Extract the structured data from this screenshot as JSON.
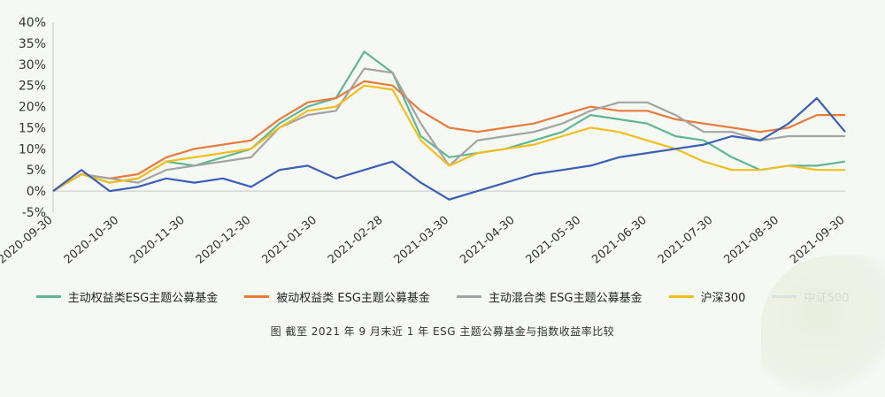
{
  "chart_data": {
    "type": "line",
    "title": "",
    "xlabel": "",
    "ylabel": "",
    "ylim": [
      -5,
      40
    ],
    "yticks": [
      "-5%",
      "0%",
      "5%",
      "10%",
      "15%",
      "20%",
      "25%",
      "30%",
      "35%",
      "40%"
    ],
    "x_tick_labels": [
      "2020-09-30",
      "2020-10-30",
      "2020-11-30",
      "2020-12-30",
      "2021-01-30",
      "2021-02-28",
      "2021-03-30",
      "2021-04-30",
      "2021-05-30",
      "2021-06-30",
      "2021-07-30",
      "2021-08-30",
      "2021-09-30"
    ],
    "grid": false,
    "legend_position": "bottom",
    "series": [
      {
        "name": "主动权益类ESG主题公募基金",
        "color": "#5cb894",
        "values": [
          0,
          4,
          2,
          3,
          7,
          6,
          8,
          10,
          16,
          20,
          22,
          33,
          28,
          13,
          8,
          9,
          10,
          12,
          14,
          18,
          17,
          16,
          13,
          12,
          8,
          5,
          6,
          6,
          7
        ]
      },
      {
        "name": "被动权益类 ESG主题公募基金",
        "color": "#e87a3c",
        "values": [
          0,
          4,
          3,
          4,
          8,
          10,
          11,
          12,
          17,
          21,
          22,
          26,
          25,
          19,
          15,
          14,
          15,
          16,
          18,
          20,
          19,
          19,
          17,
          16,
          15,
          14,
          15,
          18,
          18
        ]
      },
      {
        "name": "主动混合类 ESG主题公募基金",
        "color": "#a3a3a3",
        "values": [
          0,
          4,
          3,
          2,
          5,
          6,
          7,
          8,
          15,
          18,
          19,
          29,
          28,
          16,
          6,
          12,
          13,
          14,
          16,
          19,
          21,
          21,
          18,
          14,
          14,
          12,
          13,
          13,
          13
        ]
      },
      {
        "name": "沪深300",
        "color": "#f3be1b",
        "values": [
          0,
          4,
          2,
          3,
          7,
          8,
          9,
          10,
          15,
          19,
          20,
          25,
          24,
          12,
          6,
          9,
          10,
          11,
          13,
          15,
          14,
          12,
          10,
          7,
          5,
          5,
          6,
          5,
          5
        ]
      },
      {
        "name": "中证500",
        "color": "#3a5fb6",
        "values": [
          0,
          5,
          0,
          1,
          3,
          2,
          3,
          1,
          5,
          6,
          3,
          5,
          7,
          2,
          -2,
          0,
          2,
          4,
          5,
          6,
          8,
          9,
          10,
          11,
          13,
          12,
          16,
          22,
          14
        ]
      }
    ]
  },
  "caption": "图  截至 2021 年 9 月末近 1 年 ESG 主题公募基金与指数收益率比较"
}
